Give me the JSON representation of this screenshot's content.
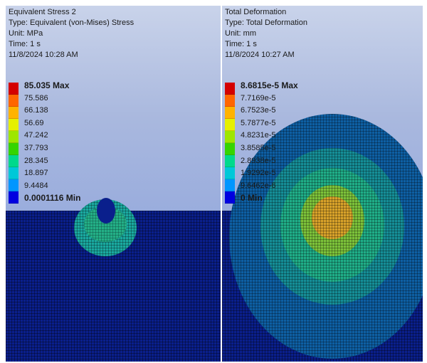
{
  "left_panel": {
    "info": [
      "Equivalent Stress 2",
      "Type: Equivalent (von-Mises) Stress",
      "Unit: MPa",
      "Time: 1 s",
      "11/8/2024 10:28 AM"
    ],
    "legend": {
      "max_label": "85.035 Max",
      "values": [
        "75.586",
        "66.138",
        "56.69",
        "47.242",
        "37.793",
        "28.345",
        "18.897",
        "9.4484"
      ],
      "min_label": "0.0001116 Min"
    }
  },
  "right_panel": {
    "info": [
      "Total Deformation",
      "Type: Total Deformation",
      "Unit: mm",
      "Time: 1 s",
      "11/8/2024 10:27 AM"
    ],
    "legend": {
      "max_label": "8.6815e-5 Max",
      "values": [
        "7.7169e-5",
        "6.7523e-5",
        "5.7877e-5",
        "4.8231e-5",
        "3.8585e-5",
        "2.8938e-5",
        "1.9292e-5",
        "9.6462e-6"
      ],
      "min_label": "0 Min"
    }
  },
  "colors": {
    "scale": [
      "#d40000",
      "#ff6600",
      "#ffb300",
      "#e6f000",
      "#9ee600",
      "#35d400",
      "#00d98c",
      "#00c8d8",
      "#0096ff",
      "#0000e0"
    ],
    "mesh_background": "#0a1f8c"
  }
}
